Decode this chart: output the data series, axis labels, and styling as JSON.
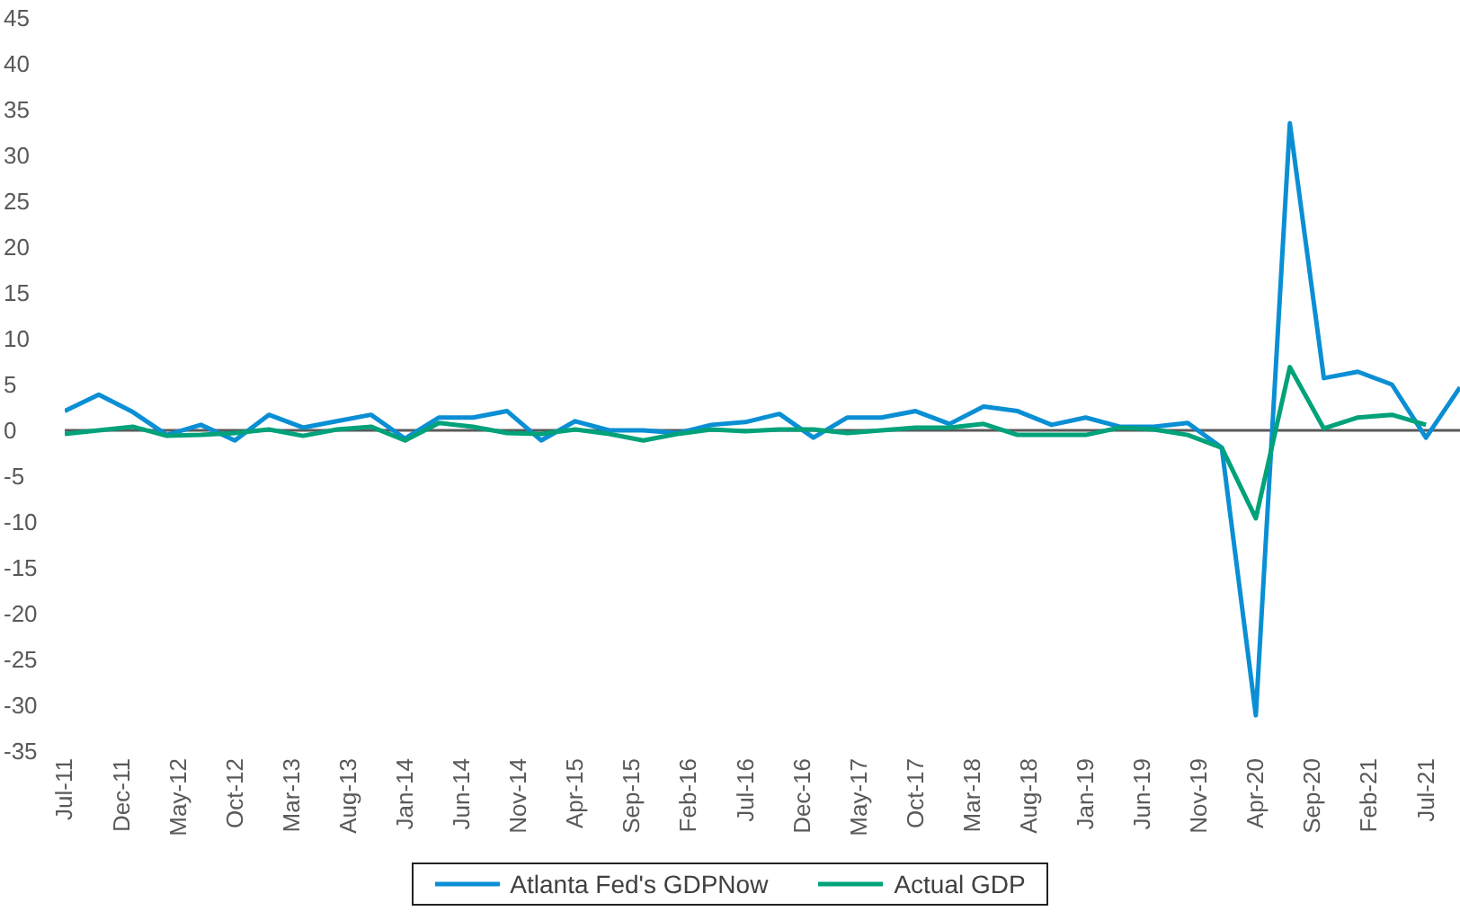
{
  "chart_data": {
    "type": "line",
    "x": [
      "2011-07",
      "2011-10",
      "2012-01",
      "2012-04",
      "2012-07",
      "2012-10",
      "2013-01",
      "2013-04",
      "2013-07",
      "2013-10",
      "2014-01",
      "2014-04",
      "2014-07",
      "2014-10",
      "2015-01",
      "2015-04",
      "2015-07",
      "2015-10",
      "2016-01",
      "2016-04",
      "2016-07",
      "2016-10",
      "2017-01",
      "2017-04",
      "2017-07",
      "2017-10",
      "2018-01",
      "2018-04",
      "2018-07",
      "2018-10",
      "2019-01",
      "2019-04",
      "2019-07",
      "2019-10",
      "2020-01",
      "2020-04",
      "2020-07",
      "2020-10",
      "2021-01",
      "2021-04",
      "2021-07",
      "2021-10"
    ],
    "series": [
      {
        "name": "Atlanta Fed's GDPNow",
        "color": "#0a8fd4",
        "values": [
          2.1,
          3.9,
          2.0,
          -0.5,
          0.6,
          -1.1,
          1.7,
          0.3,
          1.0,
          1.7,
          -0.9,
          1.4,
          1.4,
          2.1,
          -1.1,
          1.0,
          0.0,
          0.0,
          -0.3,
          0.6,
          0.9,
          1.8,
          -0.8,
          1.4,
          1.4,
          2.1,
          0.7,
          2.6,
          2.1,
          0.6,
          1.4,
          0.4,
          0.4,
          0.8,
          -1.9,
          -31.1,
          33.5,
          5.7,
          6.4,
          5.0,
          -0.8,
          4.7
        ]
      },
      {
        "name": "Actual GDP",
        "color": "#00a27a",
        "values": [
          -0.4,
          0.0,
          0.4,
          -0.6,
          -0.5,
          -0.3,
          0.1,
          -0.6,
          0.1,
          0.4,
          -1.1,
          0.8,
          0.4,
          -0.3,
          -0.4,
          0.1,
          -0.4,
          -1.1,
          -0.4,
          0.1,
          -0.1,
          0.1,
          0.1,
          -0.3,
          0.0,
          0.3,
          0.3,
          0.7,
          -0.5,
          -0.5,
          -0.5,
          0.3,
          0.1,
          -0.5,
          -1.9,
          -9.6,
          6.9,
          0.2,
          1.4,
          1.7,
          0.6,
          null
        ]
      }
    ],
    "xlim": [
      "2011-07",
      "2021-10"
    ],
    "xticks": [
      {
        "value": "2011-07",
        "label": "Jul-11"
      },
      {
        "value": "2011-12",
        "label": "Dec-11"
      },
      {
        "value": "2012-05",
        "label": "May-12"
      },
      {
        "value": "2012-10",
        "label": "Oct-12"
      },
      {
        "value": "2013-03",
        "label": "Mar-13"
      },
      {
        "value": "2013-08",
        "label": "Aug-13"
      },
      {
        "value": "2014-01",
        "label": "Jan-14"
      },
      {
        "value": "2014-06",
        "label": "Jun-14"
      },
      {
        "value": "2014-11",
        "label": "Nov-14"
      },
      {
        "value": "2015-04",
        "label": "Apr-15"
      },
      {
        "value": "2015-09",
        "label": "Sep-15"
      },
      {
        "value": "2016-02",
        "label": "Feb-16"
      },
      {
        "value": "2016-07",
        "label": "Jul-16"
      },
      {
        "value": "2016-12",
        "label": "Dec-16"
      },
      {
        "value": "2017-05",
        "label": "May-17"
      },
      {
        "value": "2017-10",
        "label": "Oct-17"
      },
      {
        "value": "2018-03",
        "label": "Mar-18"
      },
      {
        "value": "2018-08",
        "label": "Aug-18"
      },
      {
        "value": "2019-01",
        "label": "Jan-19"
      },
      {
        "value": "2019-06",
        "label": "Jun-19"
      },
      {
        "value": "2019-11",
        "label": "Nov-19"
      },
      {
        "value": "2020-04",
        "label": "Apr-20"
      },
      {
        "value": "2020-09",
        "label": "Sep-20"
      },
      {
        "value": "2021-02",
        "label": "Feb-21"
      },
      {
        "value": "2021-07",
        "label": "Jul-21"
      }
    ],
    "ylim": [
      -35,
      45
    ],
    "yticks": [
      -35,
      -30,
      -25,
      -20,
      -15,
      -10,
      -5,
      0,
      5,
      10,
      15,
      20,
      25,
      30,
      35,
      40,
      45
    ],
    "ref_lines": [
      {
        "axis": "y",
        "value": 0,
        "color": "#595959"
      }
    ],
    "grid": false,
    "legend": "bottom",
    "marker": "none",
    "line_style": "solid"
  }
}
